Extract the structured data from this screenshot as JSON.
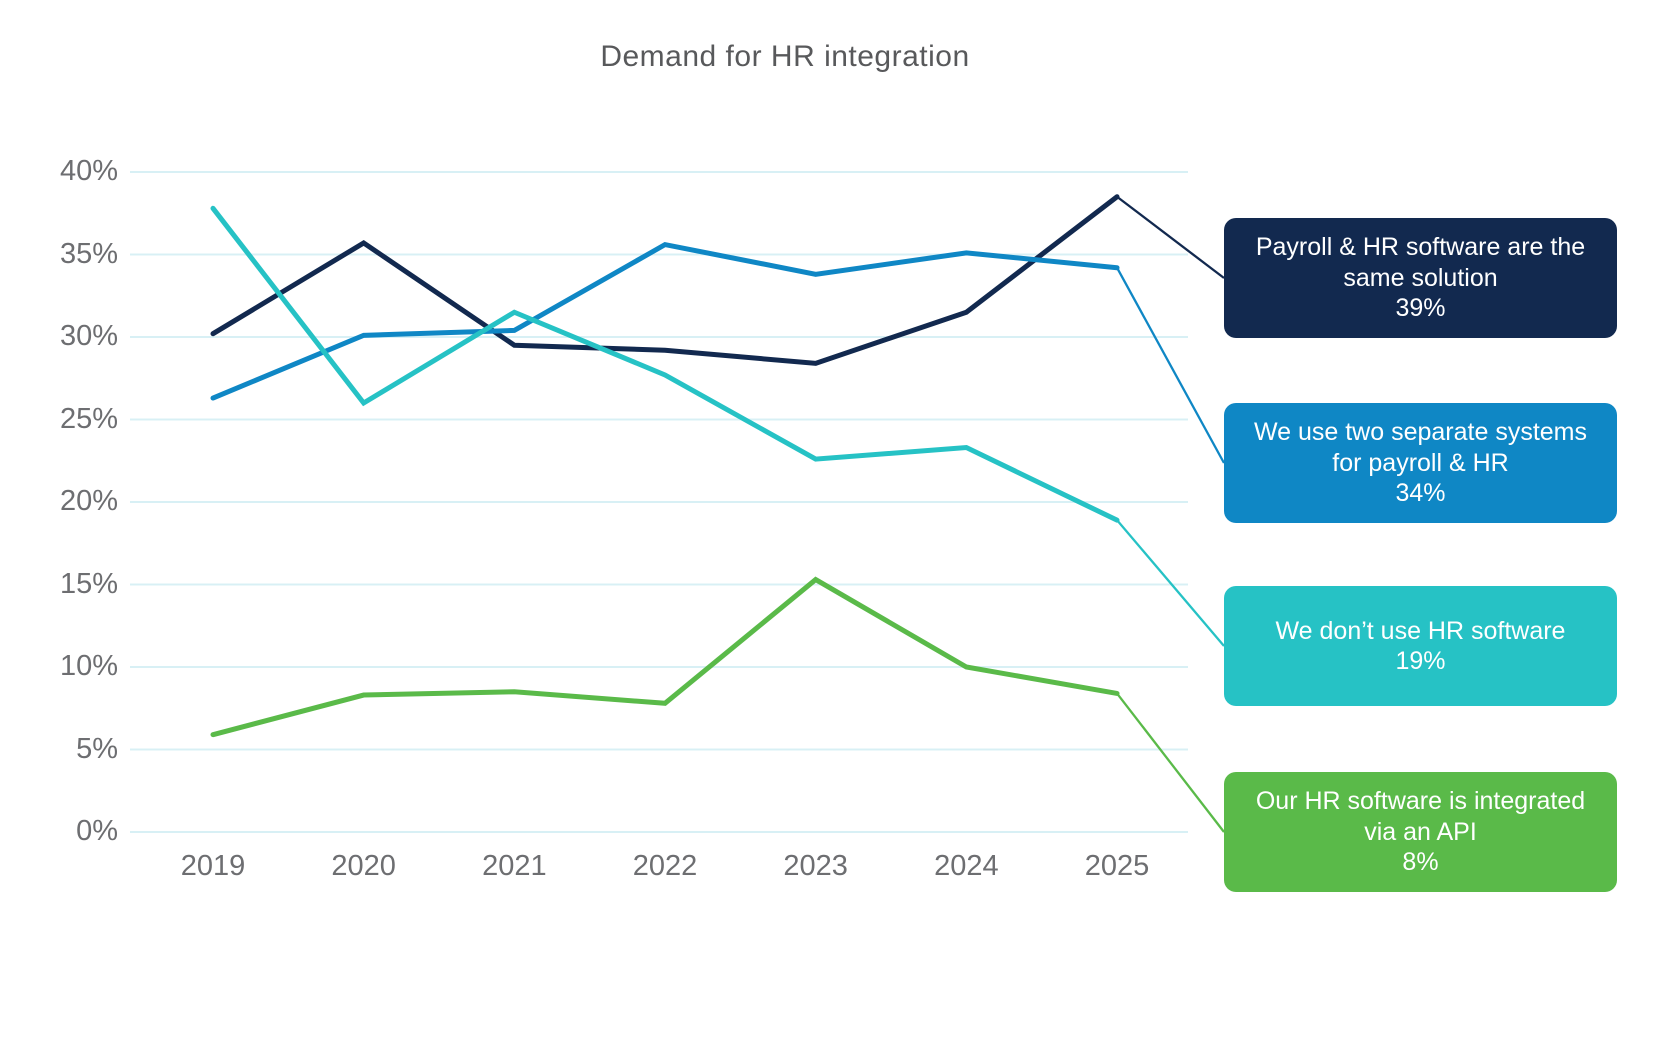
{
  "title": "Demand for HR integration",
  "chart_data": {
    "type": "line",
    "x": [
      "2019",
      "2020",
      "2021",
      "2022",
      "2023",
      "2024",
      "2025"
    ],
    "xlabel": "",
    "ylabel": "",
    "ylim": [
      0,
      40
    ],
    "y_tick_labels": [
      "0%",
      "5%",
      "10%",
      "15%",
      "20%",
      "25%",
      "30%",
      "35%",
      "40%"
    ],
    "grid": true,
    "gridline_color": "#d8f0f5",
    "legend_position": "right",
    "series": [
      {
        "name": "Payroll & HR software are the same solution",
        "pct_label": "39%",
        "color": "#12294f",
        "values": [
          30.2,
          35.7,
          29.5,
          29.2,
          28.4,
          31.5,
          38.5
        ]
      },
      {
        "name": "We use two separate systems for payroll & HR",
        "pct_label": "34%",
        "color": "#0f87c5",
        "values": [
          26.3,
          30.1,
          30.4,
          35.6,
          33.8,
          35.1,
          34.2
        ]
      },
      {
        "name": "We don’t use HR software",
        "pct_label": "19%",
        "color": "#26c2c5",
        "values": [
          37.8,
          26.0,
          31.5,
          27.7,
          22.6,
          23.3,
          18.9
        ]
      },
      {
        "name": "Our HR software is integrated via an API",
        "pct_label": "8%",
        "color": "#5aba49",
        "values": [
          5.9,
          8.3,
          8.5,
          7.8,
          15.3,
          10.0,
          8.4
        ]
      }
    ]
  }
}
